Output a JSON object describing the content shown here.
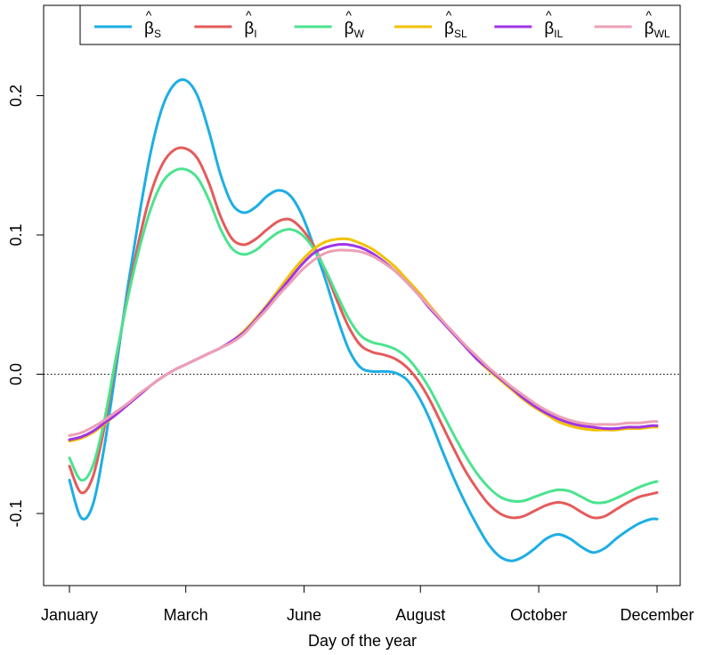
{
  "chart_data": {
    "type": "line",
    "xlabel": "Day of the year",
    "ylabel": "",
    "x_tick_labels": [
      {
        "x": 1,
        "label": "January"
      },
      {
        "x": 61,
        "label": "March"
      },
      {
        "x": 122,
        "label": "June"
      },
      {
        "x": 182,
        "label": "August"
      },
      {
        "x": 243,
        "label": "October"
      },
      {
        "x": 304,
        "label": "December"
      }
    ],
    "xlim": [
      1,
      304
    ],
    "y_tick_labels": [
      {
        "y": -0.1,
        "label": "-0.1"
      },
      {
        "y": 0.0,
        "label": "0.0"
      },
      {
        "y": 0.1,
        "label": "0.1"
      },
      {
        "y": 0.2,
        "label": "0.2"
      }
    ],
    "ylim": [
      -0.15,
      0.25
    ],
    "reference_line": {
      "y": 0,
      "style": "dotted"
    },
    "legend": {
      "placement": "top-right",
      "orientation": "horizontal"
    },
    "series": [
      {
        "name": "β̂S",
        "base": "β",
        "sub": "S",
        "color": "#1EAEE3",
        "x": [
          1,
          7,
          13,
          19,
          25,
          31,
          37,
          43,
          49,
          55,
          61,
          67,
          73,
          79,
          85,
          91,
          97,
          103,
          109,
          115,
          121,
          127,
          133,
          139,
          145,
          151,
          157,
          163,
          169,
          175,
          181,
          187,
          193,
          199,
          205,
          211,
          217,
          223,
          229,
          235,
          241,
          247,
          253,
          259,
          265,
          271,
          277,
          283,
          289,
          295,
          301,
          304
        ],
        "values": [
          -0.076,
          -0.103,
          -0.094,
          -0.052,
          0.004,
          0.062,
          0.114,
          0.16,
          0.192,
          0.208,
          0.211,
          0.2,
          0.174,
          0.143,
          0.122,
          0.116,
          0.12,
          0.128,
          0.132,
          0.128,
          0.114,
          0.092,
          0.068,
          0.041,
          0.018,
          0.005,
          0.002,
          0.002,
          0.001,
          -0.004,
          -0.016,
          -0.033,
          -0.054,
          -0.074,
          -0.092,
          -0.108,
          -0.122,
          -0.131,
          -0.134,
          -0.131,
          -0.125,
          -0.118,
          -0.115,
          -0.118,
          -0.124,
          -0.128,
          -0.125,
          -0.118,
          -0.112,
          -0.107,
          -0.104,
          -0.104
        ]
      },
      {
        "name": "β̂I",
        "base": "β",
        "sub": "I",
        "color": "#E55B5B",
        "x": [
          1,
          7,
          13,
          19,
          25,
          31,
          37,
          43,
          49,
          55,
          61,
          67,
          73,
          79,
          85,
          91,
          97,
          103,
          109,
          115,
          121,
          127,
          133,
          139,
          145,
          151,
          157,
          163,
          169,
          175,
          181,
          187,
          193,
          199,
          205,
          211,
          217,
          223,
          229,
          235,
          241,
          247,
          253,
          259,
          265,
          271,
          277,
          283,
          289,
          295,
          301,
          304
        ],
        "values": [
          -0.066,
          -0.085,
          -0.074,
          -0.038,
          0.01,
          0.056,
          0.097,
          0.13,
          0.151,
          0.161,
          0.162,
          0.155,
          0.137,
          0.113,
          0.097,
          0.093,
          0.097,
          0.104,
          0.11,
          0.111,
          0.104,
          0.092,
          0.074,
          0.053,
          0.034,
          0.021,
          0.016,
          0.014,
          0.011,
          0.005,
          -0.005,
          -0.019,
          -0.036,
          -0.053,
          -0.069,
          -0.082,
          -0.093,
          -0.1,
          -0.103,
          -0.102,
          -0.098,
          -0.094,
          -0.092,
          -0.094,
          -0.099,
          -0.103,
          -0.102,
          -0.097,
          -0.092,
          -0.088,
          -0.086,
          -0.085
        ]
      },
      {
        "name": "β̂W",
        "base": "β",
        "sub": "W",
        "color": "#4CE38F",
        "x": [
          1,
          7,
          13,
          19,
          25,
          31,
          37,
          43,
          49,
          55,
          61,
          67,
          73,
          79,
          85,
          91,
          97,
          103,
          109,
          115,
          121,
          127,
          133,
          139,
          145,
          151,
          157,
          163,
          169,
          175,
          181,
          187,
          193,
          199,
          205,
          211,
          217,
          223,
          229,
          235,
          241,
          247,
          253,
          259,
          265,
          271,
          277,
          283,
          289,
          295,
          301,
          304
        ],
        "values": [
          -0.06,
          -0.076,
          -0.066,
          -0.033,
          0.012,
          0.054,
          0.09,
          0.119,
          0.138,
          0.146,
          0.147,
          0.141,
          0.125,
          0.104,
          0.09,
          0.086,
          0.089,
          0.096,
          0.102,
          0.104,
          0.1,
          0.09,
          0.075,
          0.057,
          0.04,
          0.028,
          0.023,
          0.021,
          0.018,
          0.012,
          0.002,
          -0.011,
          -0.027,
          -0.043,
          -0.058,
          -0.071,
          -0.081,
          -0.088,
          -0.091,
          -0.091,
          -0.088,
          -0.085,
          -0.083,
          -0.084,
          -0.088,
          -0.092,
          -0.092,
          -0.089,
          -0.085,
          -0.081,
          -0.078,
          -0.077
        ]
      },
      {
        "name": "β̂SL",
        "base": "β",
        "sub": "SL",
        "color": "#F2C200",
        "x": [
          1,
          7,
          13,
          19,
          25,
          31,
          37,
          43,
          49,
          55,
          61,
          67,
          73,
          79,
          85,
          91,
          97,
          103,
          109,
          115,
          121,
          127,
          133,
          139,
          145,
          151,
          157,
          163,
          169,
          175,
          181,
          187,
          193,
          199,
          205,
          211,
          217,
          223,
          229,
          235,
          241,
          247,
          253,
          259,
          265,
          271,
          277,
          283,
          289,
          295,
          301,
          304
        ],
        "values": [
          -0.048,
          -0.046,
          -0.042,
          -0.036,
          -0.029,
          -0.022,
          -0.015,
          -0.008,
          -0.002,
          0.003,
          0.007,
          0.011,
          0.015,
          0.019,
          0.024,
          0.031,
          0.04,
          0.05,
          0.061,
          0.072,
          0.082,
          0.09,
          0.095,
          0.097,
          0.097,
          0.094,
          0.09,
          0.084,
          0.077,
          0.068,
          0.059,
          0.049,
          0.039,
          0.029,
          0.02,
          0.011,
          0.003,
          -0.004,
          -0.011,
          -0.018,
          -0.024,
          -0.029,
          -0.034,
          -0.037,
          -0.039,
          -0.04,
          -0.04,
          -0.04,
          -0.039,
          -0.039,
          -0.038,
          -0.038
        ]
      },
      {
        "name": "β̂IL",
        "base": "β",
        "sub": "IL",
        "color": "#A035E5",
        "x": [
          1,
          7,
          13,
          19,
          25,
          31,
          37,
          43,
          49,
          55,
          61,
          67,
          73,
          79,
          85,
          91,
          97,
          103,
          109,
          115,
          121,
          127,
          133,
          139,
          145,
          151,
          157,
          163,
          169,
          175,
          181,
          187,
          193,
          199,
          205,
          211,
          217,
          223,
          229,
          235,
          241,
          247,
          253,
          259,
          265,
          271,
          277,
          283,
          289,
          295,
          301,
          304
        ],
        "values": [
          -0.047,
          -0.045,
          -0.041,
          -0.035,
          -0.029,
          -0.022,
          -0.015,
          -0.008,
          -0.002,
          0.003,
          0.007,
          0.011,
          0.015,
          0.019,
          0.024,
          0.03,
          0.039,
          0.049,
          0.059,
          0.069,
          0.079,
          0.087,
          0.091,
          0.093,
          0.093,
          0.091,
          0.087,
          0.081,
          0.074,
          0.066,
          0.057,
          0.047,
          0.038,
          0.029,
          0.02,
          0.011,
          0.004,
          -0.003,
          -0.01,
          -0.017,
          -0.023,
          -0.028,
          -0.032,
          -0.035,
          -0.037,
          -0.038,
          -0.039,
          -0.039,
          -0.038,
          -0.038,
          -0.037,
          -0.037
        ]
      },
      {
        "name": "β̂WL",
        "base": "β",
        "sub": "WL",
        "color": "#ECA0B5",
        "x": [
          1,
          7,
          13,
          19,
          25,
          31,
          37,
          43,
          49,
          55,
          61,
          67,
          73,
          79,
          85,
          91,
          97,
          103,
          109,
          115,
          121,
          127,
          133,
          139,
          145,
          151,
          157,
          163,
          169,
          175,
          181,
          187,
          193,
          199,
          205,
          211,
          217,
          223,
          229,
          235,
          241,
          247,
          253,
          259,
          265,
          271,
          277,
          283,
          289,
          295,
          301,
          304
        ],
        "values": [
          -0.044,
          -0.042,
          -0.038,
          -0.033,
          -0.027,
          -0.021,
          -0.014,
          -0.008,
          -0.002,
          0.003,
          0.007,
          0.011,
          0.015,
          0.019,
          0.023,
          0.029,
          0.038,
          0.047,
          0.057,
          0.066,
          0.075,
          0.082,
          0.087,
          0.089,
          0.089,
          0.088,
          0.085,
          0.08,
          0.074,
          0.066,
          0.057,
          0.048,
          0.039,
          0.03,
          0.021,
          0.013,
          0.005,
          -0.002,
          -0.009,
          -0.015,
          -0.021,
          -0.026,
          -0.03,
          -0.033,
          -0.035,
          -0.036,
          -0.036,
          -0.036,
          -0.035,
          -0.035,
          -0.034,
          -0.034
        ]
      }
    ]
  }
}
